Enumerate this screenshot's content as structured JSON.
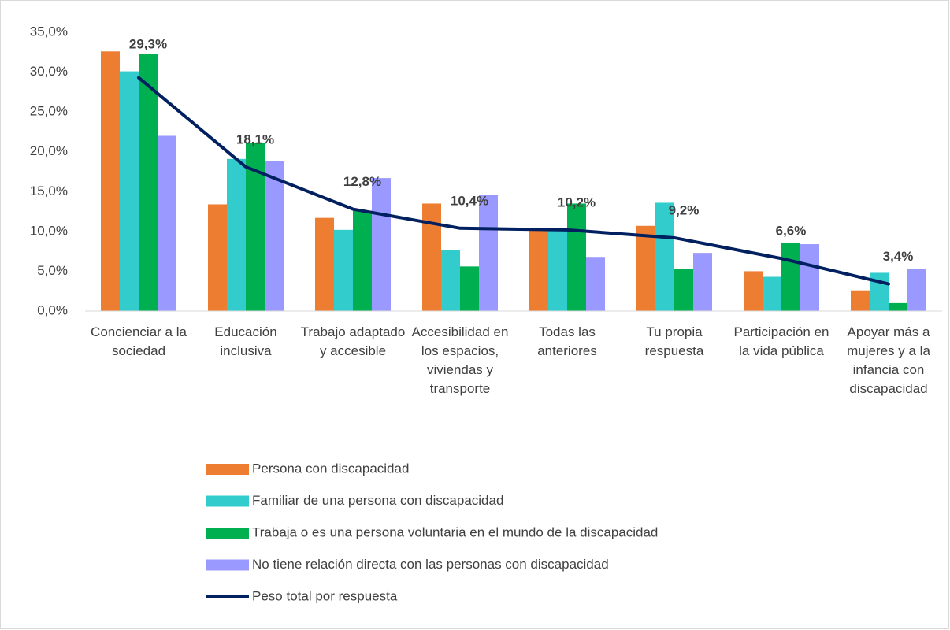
{
  "chart_data": {
    "type": "bar_line",
    "categories": [
      "Concienciar a la sociedad",
      "Educación inclusiva",
      "Trabajo adaptado y accesible",
      "Accesibilidad en los espacios, viviendas y transporte",
      "Todas las anteriores",
      "Tu propia respuesta",
      "Participación en la vida pública",
      "Apoyar más a mujeres y a la infancia con discapacidad"
    ],
    "series": [
      {
        "name": "Persona con discapacidad",
        "color": "#ed7d31",
        "values": [
          32.6,
          13.4,
          11.7,
          13.5,
          10.2,
          10.7,
          5.0,
          2.6
        ]
      },
      {
        "name": "Familiar de una persona con discapacidad",
        "color": "#33cccc",
        "values": [
          30.1,
          19.1,
          10.2,
          7.7,
          10.4,
          13.6,
          4.3,
          4.8
        ]
      },
      {
        "name": "Trabaja o es una persona voluntaria en el mundo de la discapacidad",
        "color": "#00b050",
        "values": [
          32.3,
          21.1,
          12.6,
          5.6,
          13.5,
          5.3,
          8.6,
          1.0
        ]
      },
      {
        "name": "No tiene relación directa con las personas con discapacidad",
        "color": "#9999ff",
        "values": [
          22.0,
          18.8,
          16.7,
          14.6,
          6.8,
          7.3,
          8.4,
          5.3
        ]
      },
      {
        "name": "Peso total por respuesta",
        "color": "#002060",
        "type": "line",
        "values": [
          29.3,
          18.1,
          12.8,
          10.4,
          10.2,
          9.2,
          6.6,
          3.4
        ],
        "value_labels": [
          "29,3%",
          "18,1%",
          "12,8%",
          "10,4%",
          "10,2%",
          "9,2%",
          "6,6%",
          "3,4%"
        ]
      }
    ],
    "ylim": [
      0,
      35
    ],
    "yticks": [
      {
        "value": 0,
        "label": "0,0%"
      },
      {
        "value": 5,
        "label": "5,0%"
      },
      {
        "value": 10,
        "label": "10,0%"
      },
      {
        "value": 15,
        "label": "15,0%"
      },
      {
        "value": 20,
        "label": "20,0%"
      },
      {
        "value": 25,
        "label": "25,0%"
      },
      {
        "value": 30,
        "label": "30,0%"
      },
      {
        "value": 35,
        "label": "35,0%"
      }
    ],
    "grid": false,
    "legend": "bottom"
  }
}
